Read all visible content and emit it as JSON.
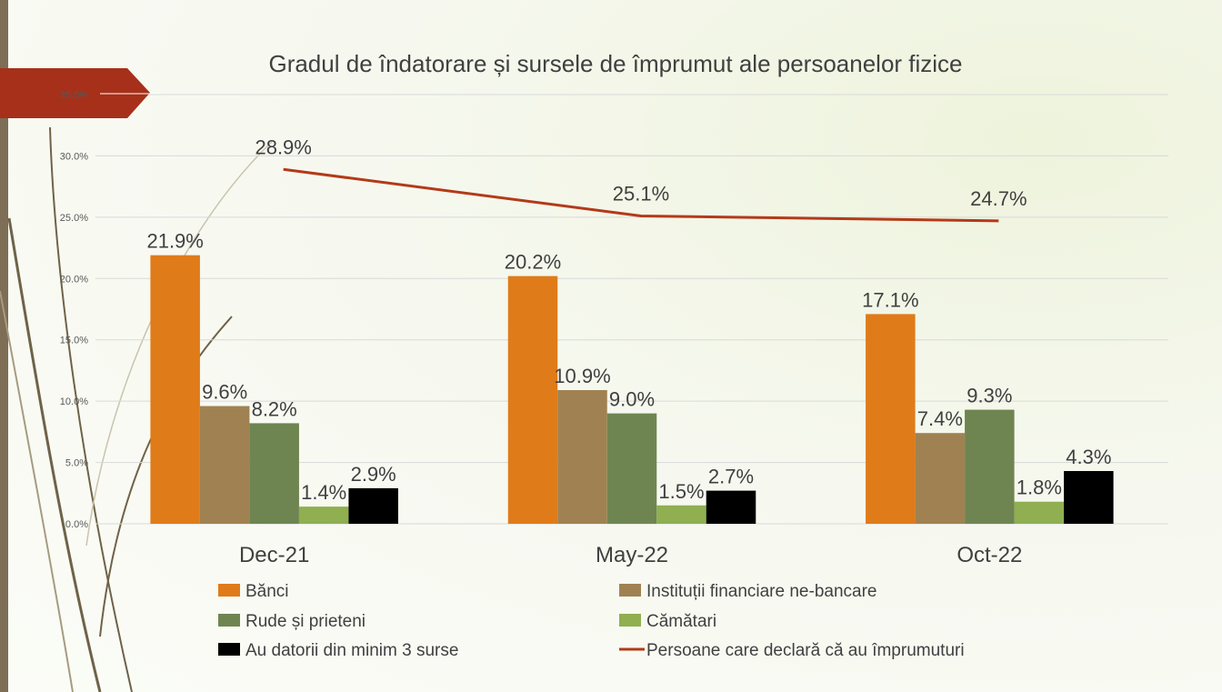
{
  "chart_data": {
    "type": "bar",
    "title": "Gradul de îndatorare și sursele de împrumut ale persoanelor fizice",
    "categories": [
      "Dec-21",
      "May-22",
      "Oct-22"
    ],
    "yticks": [
      "35.0%",
      "30.0%",
      "25.0%",
      "20.0%",
      "15.0%",
      "10.0%",
      "5.0%",
      "0.0%"
    ],
    "ylim": [
      0,
      35
    ],
    "grid": true,
    "legend_position": "bottom",
    "series": [
      {
        "name": "Bănci",
        "color": "#e07b19",
        "values": [
          21.9,
          20.2,
          17.1
        ],
        "labels": [
          "21.9%",
          "20.2%",
          "17.1%"
        ]
      },
      {
        "name": "Instituții financiare ne-bancare",
        "color": "#a08252",
        "values": [
          9.6,
          10.9,
          7.4
        ],
        "labels": [
          "9.6%",
          "10.9%",
          "7.4%"
        ]
      },
      {
        "name": "Rude și prieteni",
        "color": "#6e8551",
        "values": [
          8.2,
          9.0,
          9.3
        ],
        "labels": [
          "8.2%",
          "9.0%",
          "9.3%"
        ]
      },
      {
        "name": "Cămătari",
        "color": "#8faf50",
        "values": [
          1.4,
          1.5,
          1.8
        ],
        "labels": [
          "1.4%",
          "1.5%",
          "1.8%"
        ]
      },
      {
        "name": "Au datorii din minim 3 surse",
        "color": "#000000",
        "values": [
          2.9,
          2.7,
          4.3
        ],
        "labels": [
          "2.9%",
          "2.7%",
          "4.3%"
        ]
      }
    ],
    "line_series": {
      "name": "Persoane care declară că au împrumuturi",
      "color": "#b33a18",
      "values": [
        28.9,
        25.1,
        24.7
      ],
      "labels": [
        "28.9%",
        "25.1%",
        "24.7%"
      ]
    }
  },
  "decoration": {
    "banner_color": "#a6301a",
    "strip_color": "#7d6e55",
    "vine_color": "#6f6248"
  }
}
